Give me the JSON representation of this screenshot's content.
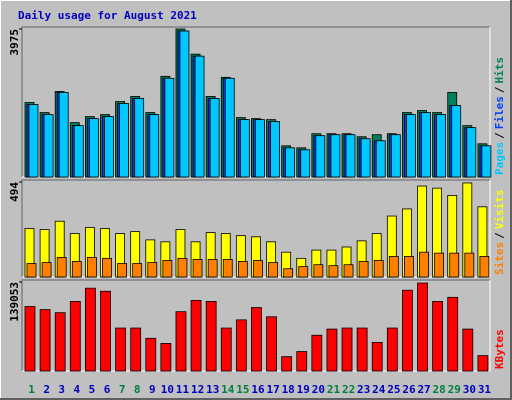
{
  "legend_separator": "/",
  "chart_data": [
    {
      "type": "bar",
      "title": "Daily usage for August 2021",
      "ylim": [
        0,
        3975
      ],
      "yticks": [
        3975
      ],
      "series": [
        {
          "name": "Hits",
          "color": "#00805c",
          "values": [
            2001,
            1731,
            2298,
            1460,
            1622,
            1676,
            2028,
            2163,
            1731,
            2704,
            3975,
            3299,
            2163,
            2677,
            1595,
            1568,
            1541,
            838,
            784,
            1163,
            1163,
            1163,
            1082,
            1136,
            1163,
            1731,
            1785,
            1731,
            2271,
            1379,
            892
          ]
        },
        {
          "name": "Files",
          "color": "#0040ff",
          "values": [
            1947,
            1676,
            2271,
            1379,
            1568,
            1622,
            1974,
            2109,
            1676,
            2650,
            3921,
            3245,
            2109,
            2650,
            1541,
            1541,
            1487,
            784,
            730,
            1109,
            1136,
            1136,
            1028,
            973,
            1136,
            1676,
            1731,
            1676,
            1920,
            1325,
            838
          ]
        },
        {
          "name": "Pages",
          "color": "#00c8ff",
          "values": [
            1947,
            1676,
            2271,
            1379,
            1568,
            1622,
            1974,
            2109,
            1676,
            2650,
            3921,
            3245,
            2109,
            2650,
            1541,
            1541,
            1487,
            784,
            730,
            1109,
            1136,
            1136,
            1028,
            973,
            1136,
            1676,
            1731,
            1676,
            1920,
            1325,
            838
          ]
        }
      ]
    },
    {
      "type": "bar",
      "ylim": [
        0,
        494
      ],
      "yticks": [
        494
      ],
      "series": [
        {
          "name": "Visits",
          "color": "#ffff00",
          "values": [
            252,
            247,
            290,
            226,
            258,
            252,
            226,
            236,
            193,
            183,
            247,
            183,
            231,
            226,
            215,
            209,
            183,
            129,
            97,
            140,
            140,
            156,
            188,
            226,
            317,
            354,
            473,
            462,
            424,
            489,
            365
          ]
        },
        {
          "name": "Sites",
          "color": "#ff8000",
          "values": [
            70,
            75,
            102,
            81,
            102,
            97,
            70,
            70,
            75,
            86,
            97,
            91,
            91,
            91,
            81,
            86,
            75,
            43,
            54,
            64,
            59,
            64,
            81,
            86,
            107,
            107,
            129,
            124,
            124,
            124,
            107
          ]
        }
      ]
    },
    {
      "type": "bar",
      "ylim": [
        0,
        139053
      ],
      "yticks": [
        139053
      ],
      "categories": [
        "1",
        "2",
        "3",
        "4",
        "5",
        "6",
        "7",
        "8",
        "9",
        "10",
        "11",
        "12",
        "13",
        "14",
        "15",
        "16",
        "17",
        "18",
        "19",
        "20",
        "21",
        "22",
        "23",
        "24",
        "25",
        "26",
        "27",
        "28",
        "29",
        "30",
        "31"
      ],
      "label_colors": [
        "#008040",
        "#0000c0",
        "#0000c0",
        "#0000c0",
        "#0000c0",
        "#0000c0",
        "#008040",
        "#008040",
        "#0000c0",
        "#0000c0",
        "#0000c0",
        "#0000c0",
        "#0000c0",
        "#008040",
        "#008040",
        "#0000c0",
        "#0000c0",
        "#0000c0",
        "#0000c0",
        "#0000c0",
        "#008040",
        "#008040",
        "#0000c0",
        "#0000c0",
        "#0000c0",
        "#0000c0",
        "#0000c0",
        "#008040",
        "#008040",
        "#0000c0",
        "#0000c0"
      ],
      "series": [
        {
          "name": "KBytes",
          "color": "#ff0000",
          "values": [
            100700,
            95900,
            91100,
            108700,
            129400,
            124600,
            67100,
            67100,
            51100,
            43100,
            92700,
            110300,
            108700,
            67100,
            79900,
            99100,
            84700,
            22400,
            30400,
            55900,
            65500,
            67100,
            67100,
            44700,
            67100,
            126200,
            137400,
            108700,
            115100,
            65500,
            24000
          ]
        }
      ]
    }
  ]
}
